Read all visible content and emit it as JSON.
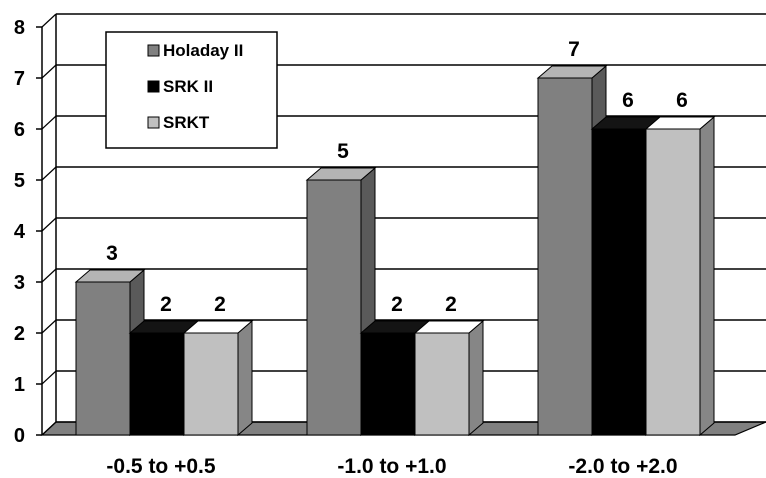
{
  "chart_data": {
    "type": "bar",
    "style": "3d-clustered",
    "categories": [
      "-0.5 to +0.5",
      "-1.0 to +1.0",
      "-2.0 to +2.0"
    ],
    "series": [
      {
        "name": "Holaday II",
        "values": [
          3,
          5,
          7
        ],
        "color": "#808080"
      },
      {
        "name": "SRK II",
        "values": [
          2,
          2,
          6
        ],
        "color": "#000000"
      },
      {
        "name": "SRKT",
        "values": [
          2,
          2,
          6
        ],
        "color": "#c0c0c0"
      }
    ],
    "data_labels": [
      [
        "3",
        "5",
        "7"
      ],
      [
        "2",
        "2",
        "6"
      ],
      [
        "2",
        "2",
        "6"
      ]
    ],
    "y_ticks": [
      "0",
      "1",
      "2",
      "3",
      "4",
      "5",
      "6",
      "7",
      "8"
    ],
    "ylim": [
      0,
      8
    ],
    "grid": true,
    "legend_position": "top-left",
    "title": "",
    "xlabel": "",
    "ylabel": ""
  }
}
